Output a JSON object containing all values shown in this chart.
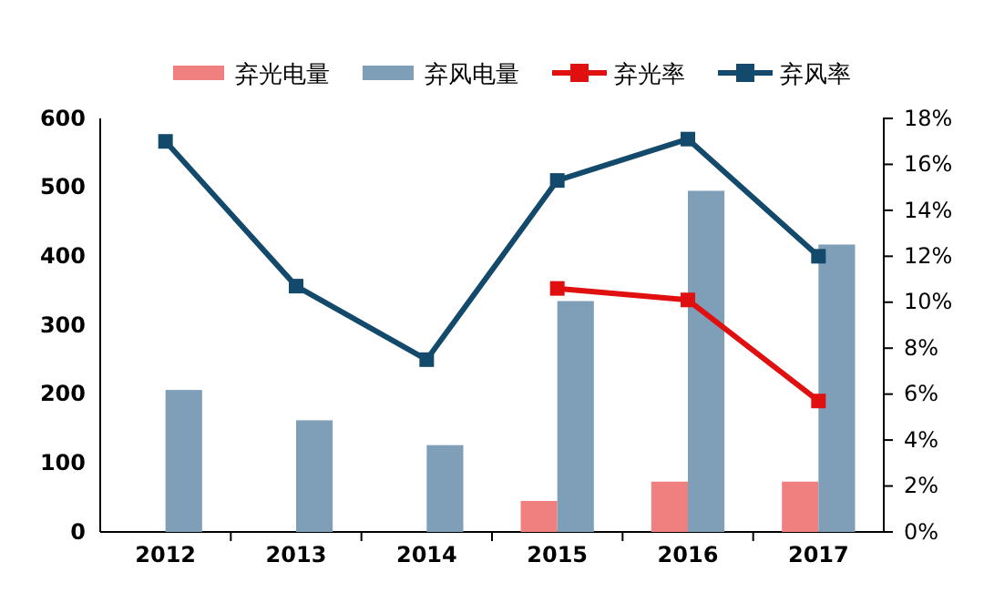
{
  "chart_data": {
    "type": "bar",
    "categories": [
      "2012",
      "2013",
      "2014",
      "2015",
      "2016",
      "2017"
    ],
    "series": [
      {
        "name": "弃光电量",
        "color": "#f08080",
        "values": [
          null,
          null,
          null,
          45,
          73,
          73
        ]
      },
      {
        "name": "弃风电量",
        "color": "#7f9fb8",
        "values": [
          206,
          162,
          126,
          335,
          495,
          417
        ]
      },
      {
        "name": "弃光率",
        "type": "line",
        "axis": "y2",
        "color": "#e01010",
        "marker": "square",
        "values": [
          null,
          null,
          null,
          10.6,
          10.1,
          5.7
        ]
      },
      {
        "name": "弃风率",
        "type": "line",
        "axis": "y2",
        "color": "#134a6b",
        "marker": "square",
        "values": [
          17.0,
          10.7,
          7.5,
          15.3,
          17.1,
          12.0
        ]
      }
    ],
    "ylim": [
      0,
      600
    ],
    "yticks": [
      0,
      100,
      200,
      300,
      400,
      500,
      600
    ],
    "y2lim": [
      0,
      18
    ],
    "y2ticks": [
      {
        "value": 0,
        "label": "0%"
      },
      {
        "value": 2,
        "label": "2%"
      },
      {
        "value": 4,
        "label": "4%"
      },
      {
        "value": 6,
        "label": "6%"
      },
      {
        "value": 8,
        "label": "8%"
      },
      {
        "value": 10,
        "label": "10%"
      },
      {
        "value": 12,
        "label": "12%"
      },
      {
        "value": 14,
        "label": "14%"
      },
      {
        "value": 16,
        "label": "16%"
      },
      {
        "value": 18,
        "label": "18%"
      }
    ],
    "legend": "top",
    "grid": false
  }
}
